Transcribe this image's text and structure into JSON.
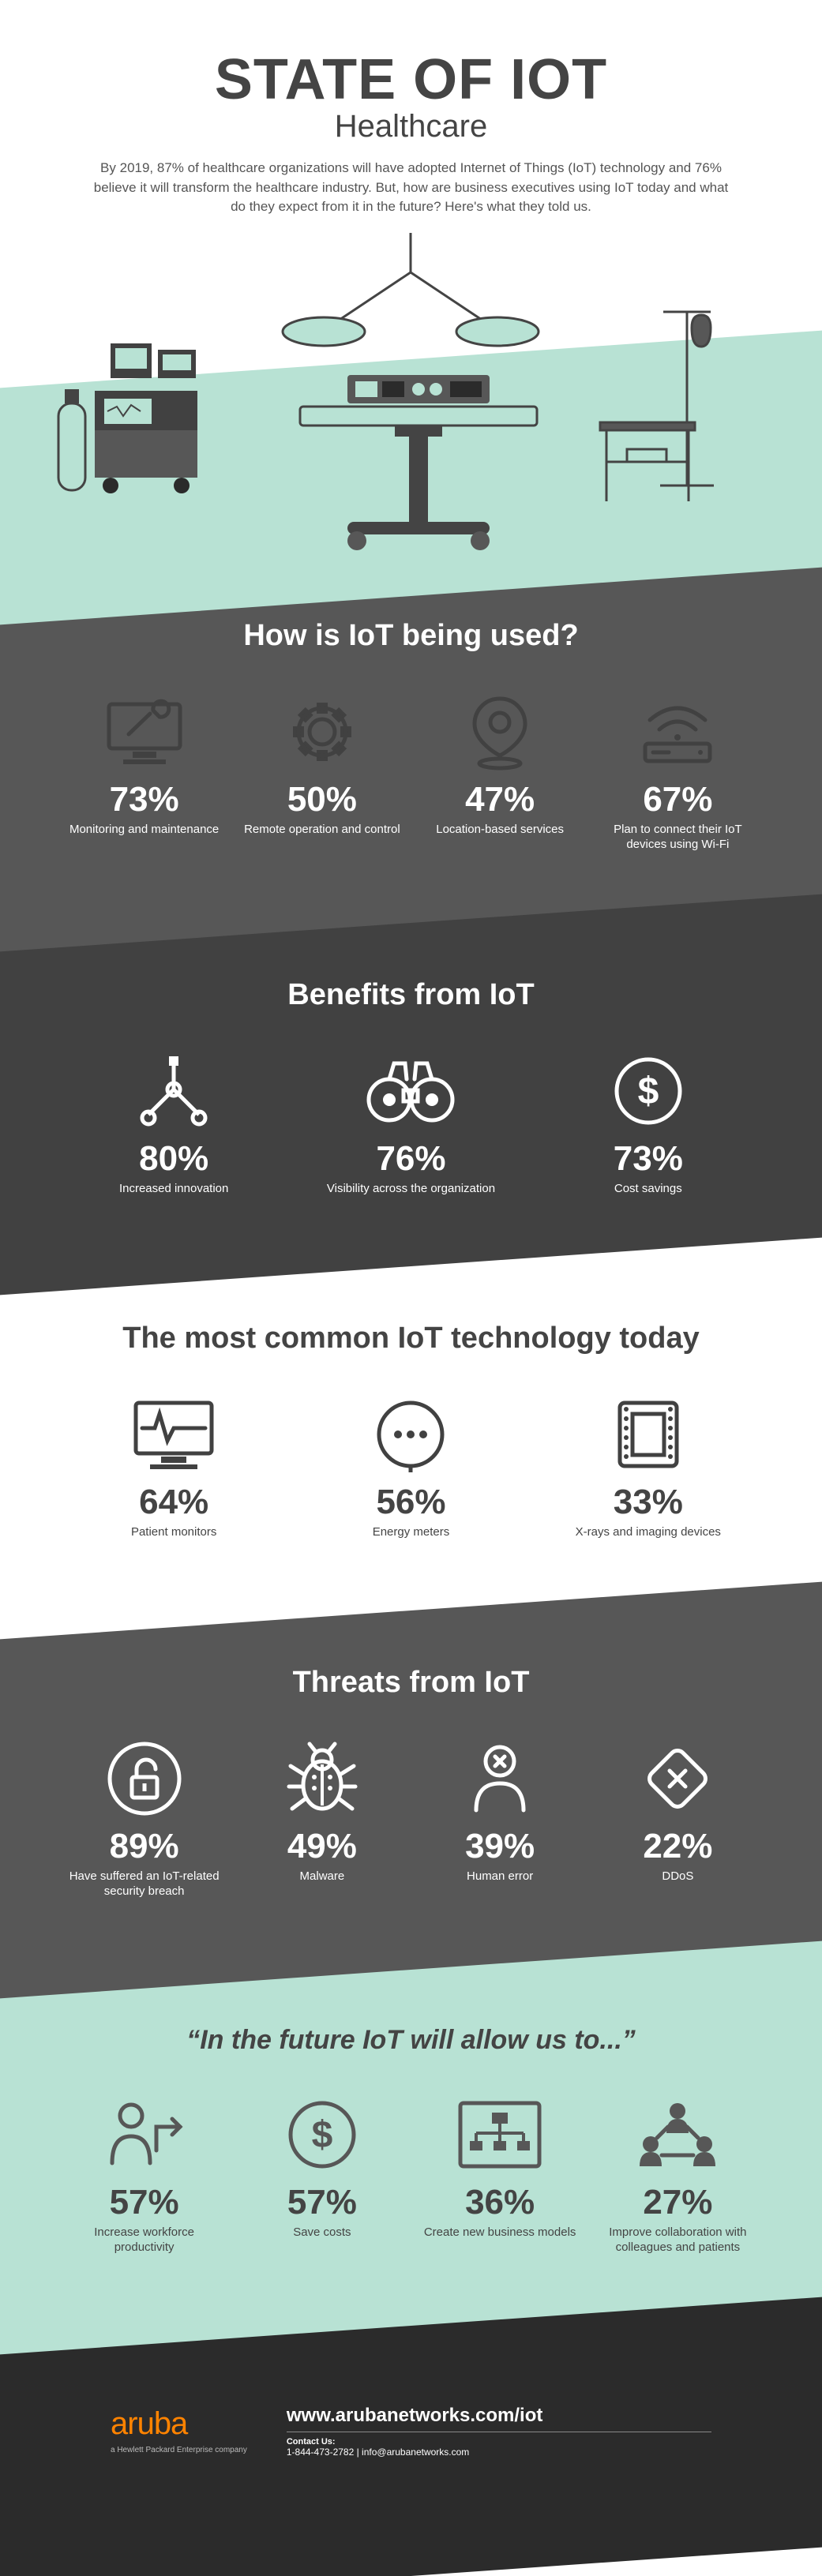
{
  "colors": {
    "text_dark": "#444444",
    "text_light": "#ffffff",
    "mint": "#b8e2d4",
    "grey_a": "#575757",
    "grey_b": "#414141",
    "footer_bg": "#2b2b2b",
    "brand_orange": "#ff8300"
  },
  "header": {
    "title": "STATE OF IOT",
    "subtitle": "Healthcare",
    "intro": "By 2019, 87% of healthcare organizations will have adopted Internet of Things (IoT) technology and 76% believe it will transform the healthcare industry. But, how are business executives using IoT today and what do they expect from it in the future? Here's what they told us."
  },
  "sections": [
    {
      "key": "usage",
      "title": "How is IoT being used?",
      "theme": "dark-a",
      "icon_color": "#414141",
      "text_color": "#ffffff",
      "cols": 4,
      "items": [
        {
          "pct": "73%",
          "label": "Monitoring and maintenance",
          "icon": "wrench-monitor-icon"
        },
        {
          "pct": "50%",
          "label": "Remote operation and control",
          "icon": "gear-icon"
        },
        {
          "pct": "47%",
          "label": "Location-based services",
          "icon": "location-pin-icon"
        },
        {
          "pct": "67%",
          "label": "Plan to connect their IoT devices using Wi-Fi",
          "icon": "wifi-router-icon"
        }
      ]
    },
    {
      "key": "benefits",
      "title": "Benefits from IoT",
      "theme": "dark-b",
      "icon_color": "#ffffff",
      "text_color": "#ffffff",
      "cols": 3,
      "items": [
        {
          "pct": "80%",
          "label": "Increased innovation",
          "icon": "network-nodes-icon"
        },
        {
          "pct": "76%",
          "label": "Visibility across the organization",
          "icon": "binoculars-icon"
        },
        {
          "pct": "73%",
          "label": "Cost savings",
          "icon": "dollar-circle-icon"
        }
      ]
    },
    {
      "key": "tech",
      "title": "The most common IoT technology today",
      "theme": "light",
      "icon_color": "#414141",
      "text_color": "#444444",
      "cols": 3,
      "items": [
        {
          "pct": "64%",
          "label": "Patient monitors",
          "icon": "patient-monitor-icon"
        },
        {
          "pct": "56%",
          "label": "Energy meters",
          "icon": "energy-meter-icon"
        },
        {
          "pct": "33%",
          "label": "X-rays and imaging devices",
          "icon": "xray-film-icon"
        }
      ]
    },
    {
      "key": "threats",
      "title": "Threats from IoT",
      "theme": "dark-a",
      "icon_color": "#ffffff",
      "text_color": "#ffffff",
      "cols": 4,
      "items": [
        {
          "pct": "89%",
          "label": "Have suffered an IoT-related security breach",
          "icon": "open-lock-icon"
        },
        {
          "pct": "49%",
          "label": "Malware",
          "icon": "bug-icon"
        },
        {
          "pct": "39%",
          "label": "Human error",
          "icon": "human-error-icon"
        },
        {
          "pct": "22%",
          "label": "DDoS",
          "icon": "ddos-diamond-icon"
        }
      ]
    },
    {
      "key": "future",
      "title": "“In the future IoT will allow us to...”",
      "theme": "mint",
      "icon_color": "#575757",
      "text_color": "#444444",
      "cols": 4,
      "quoted": true,
      "items": [
        {
          "pct": "57%",
          "label": "Increase workforce productivity",
          "icon": "productivity-icon"
        },
        {
          "pct": "57%",
          "label": "Save costs",
          "icon": "dollar-circle-icon"
        },
        {
          "pct": "36%",
          "label": "Create new business models",
          "icon": "org-chart-icon"
        },
        {
          "pct": "27%",
          "label": "Improve collaboration with colleagues and patients",
          "icon": "collaboration-icon"
        }
      ]
    }
  ],
  "footer": {
    "brand": "aruba",
    "brand_sub": "a Hewlett Packard Enterprise company",
    "url": "www.arubanetworks.com/iot",
    "contact_label": "Contact Us:",
    "contact": "1-844-473-2782 | info@arubanetworks.com"
  }
}
